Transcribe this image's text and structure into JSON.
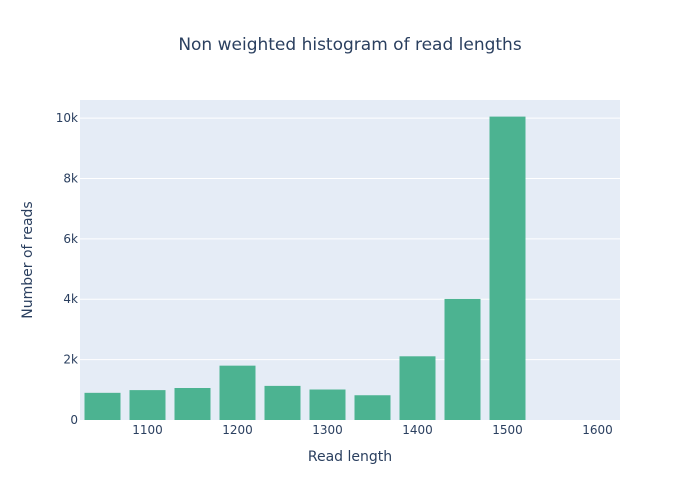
{
  "chart_data": {
    "type": "bar",
    "title": "Non weighted histogram of read lengths",
    "xlabel": "Read length",
    "ylabel": "Number of reads",
    "bin_width": 50,
    "bin_starts": [
      1025,
      1075,
      1125,
      1175,
      1225,
      1275,
      1325,
      1375,
      1425,
      1475
    ],
    "values": [
      900,
      990,
      1060,
      1800,
      1130,
      1010,
      820,
      2110,
      4010,
      10050
    ],
    "xlim": [
      1025,
      1625
    ],
    "ylim": [
      0,
      10600
    ],
    "x_ticks": [
      1100,
      1200,
      1300,
      1400,
      1500,
      1600
    ],
    "y_ticks": [
      0,
      2000,
      4000,
      6000,
      8000,
      10000
    ],
    "y_tick_labels": [
      "0",
      "2k",
      "4k",
      "6k",
      "8k",
      "10k"
    ],
    "bar_color": "#4cb391",
    "plot_bg": "#e5ecf6",
    "grid": true
  }
}
